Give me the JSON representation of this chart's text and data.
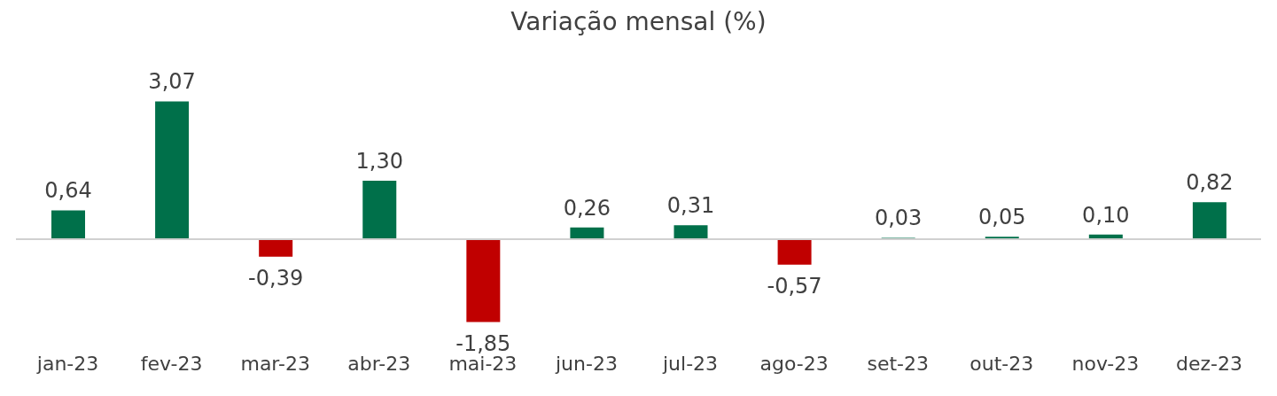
{
  "chart_data": {
    "type": "bar",
    "title": "Variação mensal  (%)",
    "categories": [
      "jan-23",
      "fev-23",
      "mar-23",
      "abr-23",
      "mai-23",
      "jun-23",
      "jul-23",
      "ago-23",
      "set-23",
      "out-23",
      "nov-23",
      "dez-23"
    ],
    "values": [
      0.64,
      3.07,
      -0.39,
      1.3,
      -1.85,
      0.26,
      0.31,
      -0.57,
      0.03,
      0.05,
      0.1,
      0.82
    ],
    "colors": [
      "#00704a",
      "#00704a",
      "#c00000",
      "#00704a",
      "#c00000",
      "#00704a",
      "#00704a",
      "#c00000",
      "#00704a",
      "#00704a",
      "#00704a",
      "#00704a"
    ],
    "value_labels": [
      "0,64",
      "3,07",
      "-0,39",
      "1,30",
      "-1,85",
      "0,26",
      "0,31",
      "-0,57",
      "0,03",
      "0,05",
      "0,10",
      "0,82"
    ]
  }
}
